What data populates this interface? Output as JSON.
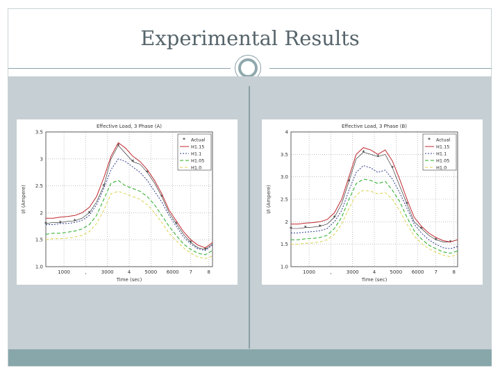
{
  "slide": {
    "title": "Experimental Results"
  },
  "colors": {
    "background": "#ffffff",
    "content_bg": "#c6cfd3",
    "accent": "#88a7ab",
    "title_text": "#56646b"
  },
  "chart_data": [
    {
      "type": "line",
      "title": "Effective Load, 3 Phase (A)",
      "xlabel": "Time (sec)",
      "ylabel": "I/I (Ampere)",
      "ylim": [
        1.0,
        3.5
      ],
      "yticks": [
        1.0,
        1.5,
        2.0,
        2.5,
        3.0,
        3.5
      ],
      "ytick_labels": [
        "1.0",
        "1.5",
        "2",
        "2.5",
        "3",
        "3.5"
      ],
      "x": [
        0,
        1,
        2,
        3,
        4,
        5,
        6,
        7,
        8,
        9,
        10,
        11,
        12,
        13,
        14,
        15,
        16,
        17,
        18,
        19,
        20,
        21,
        22,
        23
      ],
      "xlim": [
        0,
        23
      ],
      "xtick_positions": [
        2.5,
        5.5,
        8.5,
        11.5,
        14.5,
        17.5,
        20.0,
        22.5
      ],
      "xtick_labels": [
        "1000",
        ",",
        "3000",
        "4",
        "5000",
        "6000",
        "7",
        "8"
      ],
      "legend": "top-right",
      "series": [
        {
          "name": "Actual",
          "color": "#1a1a1a",
          "dash": "none",
          "marker": "star",
          "values": [
            1.8,
            1.82,
            1.82,
            1.84,
            1.85,
            1.9,
            2.0,
            2.2,
            2.5,
            3.0,
            3.25,
            3.1,
            2.95,
            2.9,
            2.75,
            2.55,
            2.3,
            2.0,
            1.8,
            1.6,
            1.45,
            1.35,
            1.32,
            1.42
          ]
        },
        {
          "name": "H1.15",
          "color": "#c0272d",
          "dash": "none",
          "marker": "none",
          "values": [
            1.9,
            1.9,
            1.92,
            1.93,
            1.95,
            2.0,
            2.1,
            2.3,
            2.65,
            3.05,
            3.3,
            3.2,
            3.05,
            2.95,
            2.8,
            2.6,
            2.35,
            2.05,
            1.85,
            1.65,
            1.5,
            1.4,
            1.35,
            1.45
          ]
        },
        {
          "name": "H1.1",
          "color": "#2a3a8a",
          "dash": "2,2",
          "marker": "none",
          "values": [
            1.78,
            1.78,
            1.8,
            1.8,
            1.82,
            1.86,
            1.95,
            2.15,
            2.45,
            2.8,
            3.0,
            2.95,
            2.85,
            2.75,
            2.6,
            2.4,
            2.2,
            1.95,
            1.75,
            1.55,
            1.42,
            1.33,
            1.3,
            1.4
          ]
        },
        {
          "name": "H1.05",
          "color": "#22aa22",
          "dash": "5,3",
          "marker": "none",
          "values": [
            1.6,
            1.62,
            1.62,
            1.64,
            1.66,
            1.7,
            1.78,
            1.95,
            2.25,
            2.55,
            2.6,
            2.5,
            2.45,
            2.4,
            2.3,
            2.15,
            1.95,
            1.75,
            1.58,
            1.42,
            1.32,
            1.25,
            1.22,
            1.3
          ]
        },
        {
          "name": "H1.0",
          "color": "#d8d24a",
          "dash": "4,3",
          "marker": "none",
          "values": [
            1.5,
            1.52,
            1.52,
            1.53,
            1.55,
            1.58,
            1.65,
            1.8,
            2.05,
            2.35,
            2.4,
            2.35,
            2.3,
            2.25,
            2.15,
            2.0,
            1.82,
            1.62,
            1.48,
            1.35,
            1.25,
            1.18,
            1.15,
            1.2
          ]
        }
      ],
      "legend_labels": [
        "Actual",
        "H1.15",
        "H1.1",
        "H1.05",
        "H1.0"
      ]
    },
    {
      "type": "line",
      "title": "Effective Load, 3 Phase (B)",
      "xlabel": "Time (sec)",
      "ylabel": "I/I (Ampere)",
      "ylim": [
        1.0,
        4.0
      ],
      "yticks": [
        1.0,
        1.5,
        2.0,
        2.5,
        3.0,
        3.5,
        4.0
      ],
      "ytick_labels": [
        "1.0",
        "1.5",
        "2",
        "2.5",
        "3.0",
        "3.5",
        "4"
      ],
      "x": [
        0,
        1,
        2,
        3,
        4,
        5,
        6,
        7,
        8,
        9,
        10,
        11,
        12,
        13,
        14,
        15,
        16,
        17,
        18,
        19,
        20,
        21,
        22,
        23
      ],
      "xlim": [
        0,
        23
      ],
      "xtick_positions": [
        2.5,
        5.5,
        8.5,
        11.5,
        14.5,
        17.5,
        20.0,
        22.5
      ],
      "xtick_labels": [
        "1000",
        ",",
        "3000",
        "4",
        "5000",
        "6000",
        "7",
        "8"
      ],
      "legend": "top-right",
      "series": [
        {
          "name": "Actual",
          "color": "#1a1a1a",
          "dash": "none",
          "marker": "star",
          "values": [
            1.85,
            1.85,
            1.87,
            1.88,
            1.9,
            1.95,
            2.1,
            2.4,
            2.9,
            3.4,
            3.55,
            3.5,
            3.45,
            3.5,
            3.2,
            2.8,
            2.4,
            2.0,
            1.85,
            1.7,
            1.6,
            1.55,
            1.55,
            1.6
          ]
        },
        {
          "name": "H1.15",
          "color": "#c0272d",
          "dash": "none",
          "marker": "none",
          "values": [
            1.95,
            1.95,
            1.97,
            1.98,
            2.0,
            2.05,
            2.2,
            2.5,
            3.0,
            3.5,
            3.65,
            3.6,
            3.5,
            3.6,
            3.35,
            2.95,
            2.5,
            2.1,
            1.9,
            1.75,
            1.65,
            1.58,
            1.55,
            1.6
          ]
        },
        {
          "name": "H1.1",
          "color": "#2a3a8a",
          "dash": "2,2",
          "marker": "none",
          "values": [
            1.75,
            1.75,
            1.77,
            1.78,
            1.8,
            1.85,
            2.0,
            2.25,
            2.7,
            3.1,
            3.25,
            3.2,
            3.1,
            3.15,
            2.95,
            2.65,
            2.3,
            1.95,
            1.75,
            1.6,
            1.5,
            1.42,
            1.4,
            1.45
          ]
        },
        {
          "name": "H1.05",
          "color": "#22aa22",
          "dash": "5,3",
          "marker": "none",
          "values": [
            1.6,
            1.6,
            1.62,
            1.63,
            1.65,
            1.7,
            1.85,
            2.1,
            2.5,
            2.85,
            2.95,
            2.92,
            2.85,
            2.9,
            2.7,
            2.45,
            2.1,
            1.8,
            1.62,
            1.48,
            1.4,
            1.33,
            1.3,
            1.35
          ]
        },
        {
          "name": "H1.0",
          "color": "#d8d24a",
          "dash": "4,3",
          "marker": "none",
          "values": [
            1.5,
            1.5,
            1.52,
            1.53,
            1.55,
            1.6,
            1.72,
            1.95,
            2.3,
            2.6,
            2.7,
            2.68,
            2.62,
            2.65,
            2.5,
            2.25,
            1.95,
            1.68,
            1.52,
            1.4,
            1.32,
            1.26,
            1.22,
            1.28
          ]
        }
      ],
      "legend_labels": [
        "Actual",
        "H1.15",
        "H1.1",
        "H1.05",
        "H1.0"
      ]
    }
  ]
}
